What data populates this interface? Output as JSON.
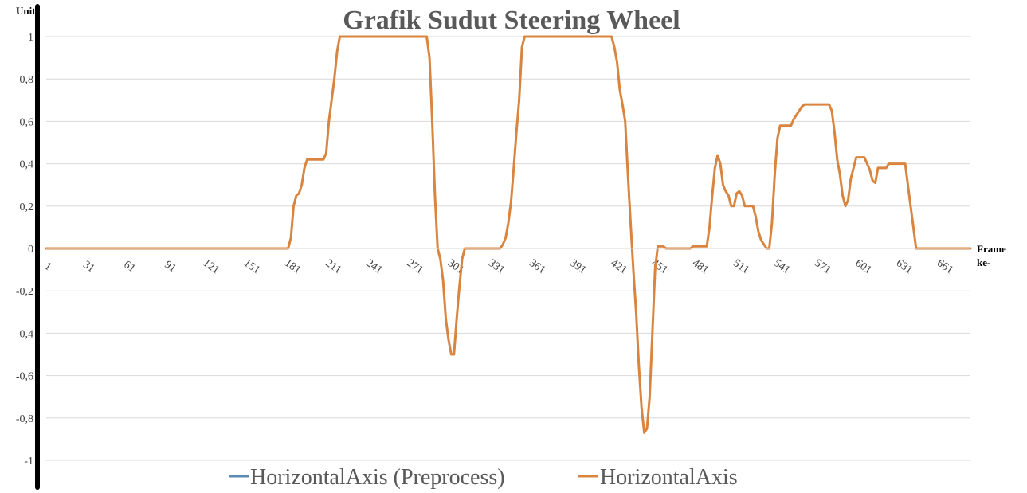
{
  "chart_data": {
    "type": "line",
    "title": "Grafik Sudut Steering Wheel",
    "ylabel": "Unit",
    "xlabel_lines": [
      "Frame",
      "ke-"
    ],
    "ylim": [
      -1,
      1
    ],
    "xlim": [
      1,
      681
    ],
    "y_ticks": [
      1,
      0.8,
      0.6,
      0.4,
      0.2,
      0,
      -0.2,
      -0.4,
      -0.6,
      -0.8,
      -1
    ],
    "y_tick_labels": [
      "1",
      "0,8",
      "0,6",
      "0,4",
      "0,2",
      "0",
      "-0,2",
      "-0,4",
      "-0,6",
      "-0,8",
      "-1"
    ],
    "x_ticks": [
      1,
      31,
      61,
      91,
      121,
      151,
      181,
      211,
      241,
      271,
      301,
      331,
      361,
      391,
      421,
      451,
      481,
      511,
      541,
      571,
      601,
      631,
      661
    ],
    "x_tick_labels": [
      "1",
      "31",
      "61",
      "91",
      "121",
      "151",
      "181",
      "211",
      "241",
      "271",
      "301",
      "331",
      "361",
      "391",
      "421",
      "451",
      "481",
      "511",
      "541",
      "571",
      "601",
      "631",
      "661"
    ],
    "grid": true,
    "legend_position": "bottom",
    "series": [
      {
        "name": "HorizontalAxis (Preprocess)",
        "color": "#5b8bb5",
        "points": []
      },
      {
        "name": "HorizontalAxis",
        "color": "#d9843f",
        "points": [
          [
            1,
            0
          ],
          [
            179,
            0
          ],
          [
            181,
            0.05
          ],
          [
            183,
            0.2
          ],
          [
            185,
            0.25
          ],
          [
            187,
            0.26
          ],
          [
            189,
            0.3
          ],
          [
            191,
            0.38
          ],
          [
            193,
            0.42
          ],
          [
            205,
            0.42
          ],
          [
            207,
            0.45
          ],
          [
            209,
            0.6
          ],
          [
            211,
            0.7
          ],
          [
            213,
            0.8
          ],
          [
            215,
            0.93
          ],
          [
            217,
            1.0
          ],
          [
            281,
            1.0
          ],
          [
            283,
            0.9
          ],
          [
            285,
            0.6
          ],
          [
            287,
            0.25
          ],
          [
            289,
            0.0
          ],
          [
            291,
            -0.05
          ],
          [
            293,
            -0.15
          ],
          [
            295,
            -0.33
          ],
          [
            297,
            -0.43
          ],
          [
            299,
            -0.5
          ],
          [
            301,
            -0.5
          ],
          [
            303,
            -0.33
          ],
          [
            305,
            -0.18
          ],
          [
            307,
            -0.05
          ],
          [
            309,
            0.0
          ],
          [
            335,
            0.0
          ],
          [
            337,
            0.02
          ],
          [
            339,
            0.05
          ],
          [
            341,
            0.12
          ],
          [
            343,
            0.22
          ],
          [
            345,
            0.38
          ],
          [
            347,
            0.55
          ],
          [
            349,
            0.7
          ],
          [
            351,
            0.95
          ],
          [
            353,
            1.0
          ],
          [
            417,
            1.0
          ],
          [
            419,
            0.95
          ],
          [
            421,
            0.88
          ],
          [
            423,
            0.75
          ],
          [
            425,
            0.68
          ],
          [
            427,
            0.6
          ],
          [
            429,
            0.35
          ],
          [
            431,
            0.12
          ],
          [
            433,
            -0.1
          ],
          [
            435,
            -0.3
          ],
          [
            437,
            -0.55
          ],
          [
            439,
            -0.75
          ],
          [
            441,
            -0.87
          ],
          [
            443,
            -0.85
          ],
          [
            445,
            -0.7
          ],
          [
            447,
            -0.4
          ],
          [
            449,
            -0.1
          ],
          [
            451,
            0.01
          ],
          [
            455,
            0.01
          ],
          [
            457,
            0.0
          ],
          [
            475,
            0.0
          ],
          [
            477,
            0.01
          ],
          [
            487,
            0.01
          ],
          [
            489,
            0.1
          ],
          [
            491,
            0.25
          ],
          [
            493,
            0.38
          ],
          [
            495,
            0.44
          ],
          [
            497,
            0.4
          ],
          [
            499,
            0.3
          ],
          [
            501,
            0.27
          ],
          [
            503,
            0.25
          ],
          [
            505,
            0.2
          ],
          [
            507,
            0.2
          ],
          [
            509,
            0.26
          ],
          [
            511,
            0.27
          ],
          [
            513,
            0.25
          ],
          [
            515,
            0.2
          ],
          [
            521,
            0.2
          ],
          [
            523,
            0.15
          ],
          [
            525,
            0.08
          ],
          [
            527,
            0.04
          ],
          [
            529,
            0.02
          ],
          [
            531,
            0.0
          ],
          [
            533,
            0.0
          ],
          [
            535,
            0.12
          ],
          [
            537,
            0.35
          ],
          [
            539,
            0.52
          ],
          [
            541,
            0.58
          ],
          [
            549,
            0.58
          ],
          [
            551,
            0.61
          ],
          [
            553,
            0.63
          ],
          [
            555,
            0.65
          ],
          [
            557,
            0.67
          ],
          [
            559,
            0.68
          ],
          [
            577,
            0.68
          ],
          [
            579,
            0.65
          ],
          [
            581,
            0.55
          ],
          [
            583,
            0.42
          ],
          [
            585,
            0.35
          ],
          [
            587,
            0.25
          ],
          [
            589,
            0.2
          ],
          [
            591,
            0.23
          ],
          [
            593,
            0.33
          ],
          [
            595,
            0.38
          ],
          [
            597,
            0.43
          ],
          [
            603,
            0.43
          ],
          [
            605,
            0.4
          ],
          [
            607,
            0.37
          ],
          [
            609,
            0.32
          ],
          [
            611,
            0.31
          ],
          [
            613,
            0.38
          ],
          [
            619,
            0.38
          ],
          [
            621,
            0.4
          ],
          [
            633,
            0.4
          ],
          [
            635,
            0.3
          ],
          [
            637,
            0.2
          ],
          [
            639,
            0.1
          ],
          [
            641,
            0.0
          ],
          [
            681,
            0.0
          ]
        ]
      }
    ]
  }
}
